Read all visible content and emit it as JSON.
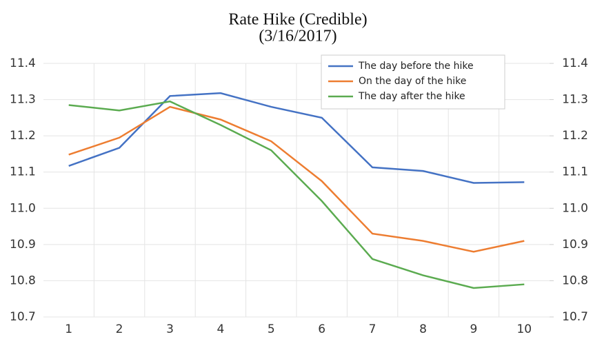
{
  "chart_data": {
    "type": "line",
    "title": "Rate Hike (Credible)",
    "subtitle": "(3/16/2017)",
    "categories": [
      "1",
      "2",
      "3",
      "4",
      "5",
      "6",
      "7",
      "8",
      "9",
      "10"
    ],
    "series": [
      {
        "name": "The day before the hike",
        "color": "#4472c4",
        "values": [
          11.117,
          11.167,
          11.31,
          11.318,
          11.28,
          11.25,
          11.113,
          11.103,
          11.07,
          11.072
        ]
      },
      {
        "name": "On the day of the hike",
        "color": "#ed7d31",
        "values": [
          11.148,
          11.195,
          11.28,
          11.245,
          11.185,
          11.075,
          10.93,
          10.91,
          10.88,
          10.91
        ]
      },
      {
        "name": "The day after the hike",
        "color": "#5bab50",
        "values": [
          11.285,
          11.27,
          11.295,
          11.23,
          11.16,
          11.02,
          10.86,
          10.815,
          10.78,
          10.79
        ]
      }
    ],
    "ylim": [
      10.7,
      11.4
    ],
    "yticks": [
      10.7,
      10.8,
      10.9,
      {
        "value": 11,
        "label": "11.0"
      },
      11.1,
      11.2,
      11.3,
      11.4
    ],
    "y2lim": [
      10.7,
      11.4
    ],
    "y2ticks": [
      10.7,
      10.8,
      10.9,
      {
        "value": 11,
        "label": "11.0"
      },
      11.1,
      11.2,
      11.3,
      11.4
    ],
    "grid": true,
    "legend": "top-right"
  }
}
